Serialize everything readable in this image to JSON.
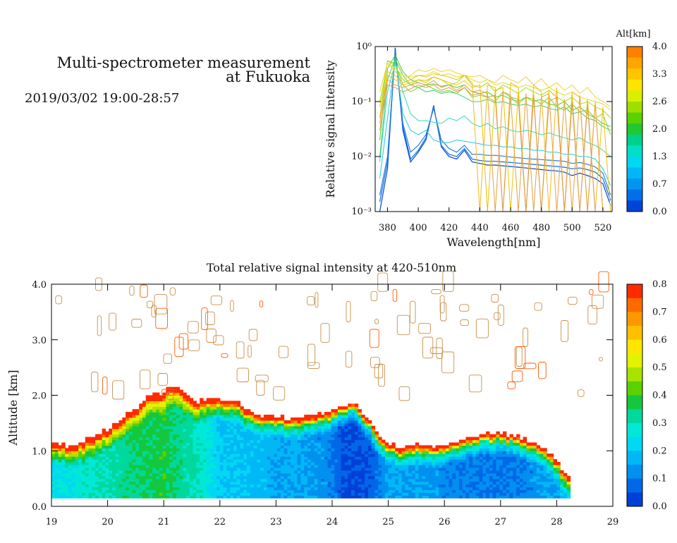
{
  "header": {
    "title_line1": "Multi-spectrometer measurement",
    "title_line2": "at Fukuoka",
    "timestamp": "2019/03/02 19:00-28:57"
  },
  "chart_data": [
    {
      "type": "line",
      "title": "",
      "xlabel": "Wavelength[nm]",
      "ylabel": "Relative signal intensity",
      "xlim": [
        372,
        526
      ],
      "ylim": [
        0.001,
        1
      ],
      "yscale": "log",
      "x": [
        375,
        380,
        385,
        390,
        395,
        400,
        405,
        410,
        415,
        420,
        425,
        430,
        435,
        440,
        445,
        450,
        455,
        460,
        465,
        470,
        475,
        480,
        485,
        490,
        495,
        500,
        505,
        510,
        515,
        520,
        525
      ],
      "x_ticks": [
        "380",
        "400",
        "420",
        "440",
        "460",
        "480",
        "500",
        "520"
      ],
      "y_ticks": [
        "10⁰",
        "10⁻¹",
        "10⁻²",
        "10⁻³"
      ],
      "colorbar": {
        "label": "Alt[km]",
        "ticks": [
          "4.0",
          "3.3",
          "2.6",
          "2.0",
          "1.3",
          "0.7",
          "0.0"
        ],
        "colors": [
          "#ff7f00",
          "#ffa500",
          "#ffc600",
          "#ffe400",
          "#d8f000",
          "#9de000",
          "#5ad200",
          "#22c830",
          "#00d18a",
          "#00e0c8",
          "#00d8f2",
          "#00b8f4",
          "#0095ef",
          "#006fe8",
          "#0043d9"
        ]
      },
      "series": [
        {
          "altitude_km": 0.2,
          "color": "#0045d5",
          "values": [
            0.001,
            0.006,
            0.95,
            0.03,
            0.008,
            0.012,
            0.02,
            0.085,
            0.015,
            0.01,
            0.009,
            0.013,
            0.008,
            0.0075,
            0.007,
            0.007,
            0.0068,
            0.0066,
            0.0064,
            0.0062,
            0.006,
            0.0058,
            0.0056,
            0.0055,
            0.0052,
            0.0045,
            0.005,
            0.0045,
            0.004,
            0.0032,
            0.0013
          ]
        },
        {
          "altitude_km": 0.4,
          "color": "#0a6fe0",
          "values": [
            0.0015,
            0.008,
            0.85,
            0.035,
            0.009,
            0.013,
            0.022,
            0.08,
            0.016,
            0.011,
            0.01,
            0.014,
            0.009,
            0.0085,
            0.0082,
            0.0082,
            0.008,
            0.0078,
            0.0076,
            0.0074,
            0.0072,
            0.007,
            0.0068,
            0.0066,
            0.0064,
            0.006,
            0.0062,
            0.0058,
            0.0052,
            0.004,
            0.0016
          ]
        },
        {
          "altitude_km": 0.7,
          "color": "#2a7fd8",
          "values": [
            0.002,
            0.01,
            0.8,
            0.04,
            0.012,
            0.016,
            0.025,
            0.075,
            0.02,
            0.014,
            0.012,
            0.016,
            0.011,
            0.011,
            0.0105,
            0.0105,
            0.0102,
            0.0098,
            0.0095,
            0.0092,
            0.009,
            0.0088,
            0.0086,
            0.0084,
            0.0082,
            0.0075,
            0.0078,
            0.0072,
            0.0065,
            0.005,
            0.002
          ]
        },
        {
          "altitude_km": 1.0,
          "color": "#20c8e8",
          "values": [
            0.004,
            0.05,
            0.6,
            0.06,
            0.03,
            0.025,
            0.03,
            0.02,
            0.018,
            0.018,
            0.02,
            0.019,
            0.018,
            0.017,
            0.016,
            0.016,
            0.015,
            0.015,
            0.014,
            0.014,
            0.013,
            0.013,
            0.012,
            0.012,
            0.011,
            0.011,
            0.01,
            0.01,
            0.009,
            0.006,
            0.003
          ]
        },
        {
          "altitude_km": 1.2,
          "color": "#30d8c0",
          "values": [
            0.008,
            0.15,
            0.5,
            0.15,
            0.06,
            0.045,
            0.045,
            0.042,
            0.04,
            0.05,
            0.045,
            0.055,
            0.04,
            0.035,
            0.04,
            0.032,
            0.035,
            0.03,
            0.028,
            0.03,
            0.028,
            0.025,
            0.027,
            0.024,
            0.022,
            0.02,
            0.022,
            0.018,
            0.016,
            0.013,
            0.01
          ]
        },
        {
          "altitude_km": 1.5,
          "color": "#40d060",
          "values": [
            0.01,
            0.25,
            0.6,
            0.3,
            0.2,
            0.18,
            0.15,
            0.16,
            0.14,
            0.15,
            0.14,
            0.12,
            0.1,
            0.1,
            0.11,
            0.095,
            0.1,
            0.09,
            0.085,
            0.09,
            0.08,
            0.085,
            0.075,
            0.07,
            0.08,
            0.06,
            0.065,
            0.05,
            0.045,
            0.035,
            0.03
          ]
        },
        {
          "altitude_km": 1.8,
          "color": "#58c828",
          "values": [
            0.02,
            0.4,
            0.7,
            0.35,
            0.25,
            0.22,
            0.2,
            0.21,
            0.19,
            0.2,
            0.18,
            0.2,
            0.15,
            0.14,
            0.15,
            0.12,
            0.13,
            0.11,
            0.1,
            0.12,
            0.1,
            0.11,
            0.09,
            0.085,
            0.1,
            0.07,
            0.08,
            0.06,
            0.05,
            0.04,
            0.035
          ]
        },
        {
          "altitude_km": 2.2,
          "color": "#7cd820",
          "values": [
            0.05,
            0.55,
            0.5,
            0.2,
            0.15,
            0.18,
            0.2,
            0.17,
            0.15,
            0.16,
            0.14,
            0.18,
            0.12,
            0.13,
            0.12,
            0.1,
            0.15,
            0.12,
            0.09,
            0.12,
            0.11,
            0.09,
            0.12,
            0.08,
            0.07,
            0.09,
            0.065,
            0.07,
            0.05,
            0.06,
            0.025
          ]
        },
        {
          "altitude_km": 2.4,
          "color": "#a8e010",
          "values": [
            0.08,
            0.55,
            0.45,
            0.25,
            0.2,
            0.25,
            0.22,
            0.28,
            0.25,
            0.2,
            0.22,
            0.3,
            0.2,
            0.18,
            0.22,
            0.15,
            0.2,
            0.17,
            0.14,
            0.18,
            0.15,
            0.13,
            0.16,
            0.12,
            0.1,
            0.12,
            0.09,
            0.1,
            0.08,
            0.07,
            0.05
          ]
        },
        {
          "altitude_km": 2.7,
          "color": "#d8e020",
          "values": [
            0.1,
            0.5,
            0.4,
            0.3,
            0.28,
            0.3,
            0.3,
            0.35,
            0.3,
            0.32,
            0.28,
            0.3,
            0.25,
            0.22,
            0.25,
            0.2,
            0.22,
            0.2,
            0.18,
            0.2,
            0.18,
            0.16,
            0.18,
            0.15,
            0.13,
            0.15,
            0.12,
            0.11,
            0.1,
            0.09,
            0.07
          ]
        },
        {
          "altitude_km": 3.0,
          "color": "#f0d040",
          "values": [
            0.15,
            0.5,
            0.35,
            0.25,
            0.3,
            0.38,
            0.35,
            0.4,
            0.35,
            0.38,
            0.33,
            0.3,
            0.28,
            0.3,
            0.25,
            0.22,
            0.3,
            0.25,
            0.22,
            0.28,
            0.2,
            0.26,
            0.18,
            0.22,
            0.16,
            0.2,
            0.14,
            0.18,
            0.12,
            0.1,
            0.08
          ]
        },
        {
          "altitude_km": 3.2,
          "color": "#f8b818",
          "values": [
            0.05,
            0.35,
            0.3,
            0.22,
            0.25,
            0.3,
            0.28,
            0.32,
            0.3,
            0.28,
            0.25,
            0.3,
            0.22,
            0.001,
            0.2,
            0.18,
            0.001,
            0.22,
            0.18,
            0.001,
            0.2,
            0.15,
            0.001,
            0.18,
            0.001,
            0.15,
            0.12,
            0.001,
            0.1,
            0.001,
            0.001
          ]
        },
        {
          "altitude_km": 3.5,
          "color": "#f0c000",
          "values": [
            0.05,
            0.3,
            0.25,
            0.2,
            0.22,
            0.25,
            0.24,
            0.28,
            0.25,
            0.22,
            0.2,
            0.24,
            0.18,
            0.2,
            0.001,
            0.16,
            0.18,
            0.001,
            0.15,
            0.001,
            0.14,
            0.001,
            0.16,
            0.12,
            0.001,
            0.14,
            0.001,
            0.11,
            0.001,
            0.08,
            0.001
          ]
        },
        {
          "altitude_km": 3.7,
          "color": "#e8a040",
          "values": [
            0.04,
            0.25,
            0.2,
            0.18,
            0.2,
            0.22,
            0.2,
            0.24,
            0.18,
            0.2,
            0.16,
            0.2,
            0.15,
            0.16,
            0.14,
            0.001,
            0.15,
            0.13,
            0.001,
            0.14,
            0.001,
            0.12,
            0.14,
            0.001,
            0.11,
            0.001,
            0.13,
            0.001,
            0.09,
            0.001,
            0.001
          ]
        },
        {
          "altitude_km": 3.9,
          "color": "#d89858",
          "values": [
            0.03,
            0.2,
            0.18,
            0.15,
            0.17,
            0.2,
            0.18,
            0.2,
            0.16,
            0.18,
            0.15,
            0.18,
            0.13,
            0.14,
            0.12,
            0.13,
            0.001,
            0.12,
            0.11,
            0.001,
            0.12,
            0.001,
            0.1,
            0.12,
            0.001,
            0.1,
            0.001,
            0.09,
            0.001,
            0.001,
            0.001
          ]
        }
      ]
    },
    {
      "type": "heatmap",
      "title": "Total relative signal intensity at 420-510nm",
      "xlabel": "",
      "ylabel": "Altitude [km]",
      "xlim": [
        19,
        29
      ],
      "ylim": [
        0,
        4
      ],
      "x_ticks": [
        "19",
        "20",
        "21",
        "22",
        "23",
        "24",
        "25",
        "26",
        "27",
        "28",
        "29"
      ],
      "y_ticks": [
        "0.0",
        "1.0",
        "2.0",
        "3.0",
        "4.0"
      ],
      "colorbar": {
        "ticks": [
          "0.8",
          "0.7",
          "0.6",
          "0.5",
          "0.4",
          "0.3",
          "0.2",
          "0.1",
          "0.0"
        ],
        "colors": [
          "#ff2a00",
          "#ff6a00",
          "#ff9800",
          "#ffc000",
          "#ffe600",
          "#e2f200",
          "#a8e200",
          "#5cd000",
          "#14c83e",
          "#00d89c",
          "#00e8d6",
          "#00d8f4",
          "#00b8f6",
          "#0090f0",
          "#0068e6",
          "#0040d8"
        ]
      },
      "boundary_x": [
        19.0,
        19.3,
        19.6,
        19.9,
        20.2,
        20.5,
        20.7,
        20.9,
        21.0,
        21.2,
        21.4,
        21.6,
        21.8,
        22.0,
        22.3,
        22.5,
        22.8,
        23.0,
        23.3,
        23.6,
        23.9,
        24.2,
        24.4,
        24.6,
        24.8,
        25.0,
        25.2,
        25.5,
        25.8,
        26.0,
        26.3,
        26.6,
        26.9,
        27.2,
        27.5,
        27.8,
        28.0,
        28.2
      ],
      "boundary_alt_km": [
        1.1,
        1.05,
        1.15,
        1.3,
        1.5,
        1.75,
        1.95,
        2.0,
        2.05,
        2.15,
        2.0,
        1.85,
        1.95,
        1.9,
        1.85,
        1.7,
        1.6,
        1.6,
        1.55,
        1.6,
        1.65,
        1.8,
        1.85,
        1.6,
        1.3,
        1.1,
        1.05,
        1.1,
        1.05,
        1.1,
        1.2,
        1.25,
        1.3,
        1.25,
        1.15,
        1.0,
        0.8,
        0.5
      ],
      "core_intensity": [
        0.25,
        0.25,
        0.28,
        0.3,
        0.32,
        0.35,
        0.36,
        0.37,
        0.38,
        0.34,
        0.32,
        0.3,
        0.26,
        0.2,
        0.2,
        0.18,
        0.18,
        0.15,
        0.16,
        0.14,
        0.12,
        0.05,
        0.04,
        0.05,
        0.09,
        0.15,
        0.16,
        0.15,
        0.13,
        0.12,
        0.1,
        0.11,
        0.09,
        0.1,
        0.12,
        0.15,
        0.16,
        0.2
      ]
    }
  ]
}
